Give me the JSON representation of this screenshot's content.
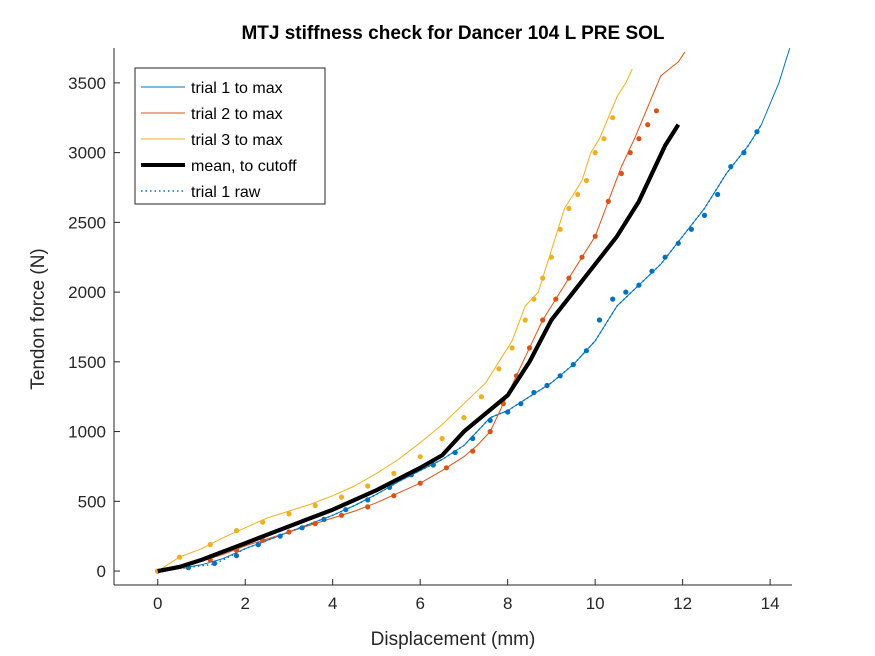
{
  "chart_data": {
    "type": "line",
    "title": "MTJ stiffness check for Dancer 104 L PRE SOL",
    "xlabel": "Displacement (mm)",
    "ylabel": "Tendon force (N)",
    "xlim": [
      -1,
      14.5
    ],
    "ylim": [
      -100,
      3750
    ],
    "xticks": [
      0,
      2,
      4,
      6,
      8,
      10,
      12,
      14
    ],
    "yticks": [
      0,
      500,
      1000,
      1500,
      2000,
      2500,
      3000,
      3500
    ],
    "xtick_labels": [
      "0",
      "2",
      "4",
      "6",
      "8",
      "10",
      "12",
      "14"
    ],
    "ytick_labels": [
      "0",
      "500",
      "1000",
      "1500",
      "2000",
      "2500",
      "3000",
      "3500"
    ],
    "grid": false,
    "legend_position": "top-left",
    "series": [
      {
        "name": "trial 1 to max",
        "color": "#0072BD",
        "style": "solid",
        "width": 1,
        "x": [
          0,
          0.5,
          1.0,
          1.5,
          2.0,
          2.5,
          3.0,
          3.5,
          4.0,
          4.5,
          5.0,
          5.5,
          6.0,
          6.5,
          7.0,
          7.3,
          7.6,
          8.0,
          8.5,
          9.0,
          9.5,
          10.0,
          10.5,
          11.0,
          11.5,
          12.0,
          12.5,
          13.0,
          13.5,
          13.8,
          14.0,
          14.2,
          14.3,
          14.35,
          14.4,
          14.45
        ],
        "y": [
          0,
          20,
          45,
          90,
          160,
          220,
          280,
          340,
          400,
          470,
          550,
          640,
          720,
          800,
          900,
          1000,
          1100,
          1150,
          1250,
          1350,
          1480,
          1650,
          1900,
          2050,
          2200,
          2400,
          2600,
          2850,
          3050,
          3200,
          3350,
          3500,
          3600,
          3650,
          3700,
          3750
        ]
      },
      {
        "name": "trial 2 to max",
        "color": "#D95319",
        "style": "solid",
        "width": 1,
        "x": [
          0,
          0.5,
          1.0,
          1.5,
          2.0,
          2.5,
          3.0,
          3.5,
          4.0,
          4.5,
          5.0,
          5.5,
          6.0,
          6.5,
          7.0,
          7.3,
          7.6,
          7.9,
          8.2,
          8.5,
          8.8,
          9.1,
          9.4,
          9.7,
          10.0,
          10.3,
          10.6,
          10.9,
          11.1,
          11.3,
          11.5,
          11.7,
          11.9,
          12.05
        ],
        "y": [
          0,
          30,
          70,
          120,
          180,
          230,
          280,
          330,
          380,
          430,
          490,
          560,
          630,
          720,
          820,
          900,
          1000,
          1200,
          1400,
          1600,
          1800,
          1950,
          2100,
          2250,
          2400,
          2650,
          2900,
          3100,
          3250,
          3400,
          3550,
          3600,
          3650,
          3720
        ]
      },
      {
        "name": "trial 3 to max",
        "color": "#EDB120",
        "style": "solid",
        "width": 1,
        "x": [
          0,
          0.5,
          1.0,
          1.5,
          2.0,
          2.5,
          3.0,
          3.5,
          4.0,
          4.5,
          5.0,
          5.5,
          6.0,
          6.5,
          7.0,
          7.5,
          7.8,
          8.1,
          8.4,
          8.7,
          8.9,
          9.1,
          9.3,
          9.5,
          9.7,
          9.9,
          10.1,
          10.3,
          10.5,
          10.7,
          10.85
        ],
        "y": [
          0,
          100,
          160,
          240,
          310,
          380,
          430,
          480,
          540,
          610,
          700,
          800,
          920,
          1050,
          1200,
          1350,
          1500,
          1650,
          1900,
          2000,
          2200,
          2400,
          2600,
          2700,
          2800,
          3000,
          3100,
          3250,
          3400,
          3500,
          3600
        ]
      },
      {
        "name": "mean, to cutoff",
        "color": "#000000",
        "style": "solid",
        "width": 4,
        "x": [
          0,
          0.5,
          1.0,
          1.5,
          2.0,
          2.5,
          3.0,
          3.5,
          4.0,
          4.5,
          5.0,
          5.5,
          6.0,
          6.5,
          7.0,
          7.5,
          8.0,
          8.5,
          9.0,
          9.5,
          10.0,
          10.5,
          11.0,
          11.3,
          11.6,
          11.9
        ],
        "y": [
          0,
          30,
          80,
          140,
          200,
          260,
          320,
          380,
          440,
          510,
          580,
          660,
          740,
          830,
          1000,
          1130,
          1260,
          1500,
          1800,
          2000,
          2200,
          2400,
          2650,
          2850,
          3050,
          3200
        ]
      },
      {
        "name": "trial 1 raw",
        "color": "#0072BD",
        "style": "dotted",
        "width": 1.5,
        "marker_every": 1,
        "x": [
          0,
          1.3,
          2.0,
          2.5,
          3.0,
          3.5,
          4.0,
          4.5,
          5.0,
          5.5,
          6.0,
          6.5,
          7.0,
          7.3,
          7.6,
          8.0,
          8.5,
          9.0,
          9.5,
          10.0,
          10.5,
          11.0,
          11.5,
          12.0,
          12.5,
          13.0,
          13.5,
          13.8
        ],
        "y": [
          0,
          50,
          160,
          220,
          280,
          340,
          400,
          470,
          550,
          640,
          720,
          800,
          900,
          1000,
          1100,
          1150,
          1250,
          1350,
          1480,
          1650,
          1900,
          2050,
          2200,
          2400,
          2600,
          2850,
          3050,
          3200
        ]
      }
    ],
    "markers": [
      {
        "series": "trial 1 to max",
        "color": "#0072BD",
        "x": [
          0,
          0.7,
          1.3,
          1.8,
          2.3,
          2.8,
          3.3,
          3.8,
          4.3,
          4.8,
          5.3,
          5.8,
          6.3,
          6.8,
          7.2,
          7.6,
          8.0,
          8.3,
          8.6,
          8.9,
          9.2,
          9.5,
          9.8,
          10.1,
          10.4,
          10.7,
          11.0,
          11.3,
          11.6,
          11.9,
          12.2,
          12.5,
          12.8,
          13.1,
          13.4,
          13.7
        ],
        "y": [
          0,
          25,
          55,
          110,
          190,
          250,
          310,
          370,
          440,
          510,
          600,
          690,
          760,
          850,
          950,
          1080,
          1140,
          1200,
          1280,
          1330,
          1400,
          1480,
          1580,
          1800,
          1950,
          2000,
          2050,
          2150,
          2250,
          2350,
          2450,
          2550,
          2700,
          2900,
          3000,
          3150
        ]
      },
      {
        "series": "trial 2 to max",
        "color": "#D95319",
        "x": [
          0,
          0.6,
          1.2,
          1.8,
          2.4,
          3.0,
          3.6,
          4.2,
          4.8,
          5.4,
          6.0,
          6.6,
          7.2,
          7.6,
          7.9,
          8.2,
          8.5,
          8.8,
          9.1,
          9.4,
          9.7,
          10.0,
          10.3,
          10.6,
          10.8,
          11.0,
          11.2,
          11.4
        ],
        "y": [
          0,
          35,
          80,
          150,
          220,
          280,
          340,
          400,
          460,
          540,
          630,
          740,
          860,
          1000,
          1200,
          1400,
          1600,
          1800,
          1950,
          2100,
          2250,
          2400,
          2650,
          2850,
          3000,
          3100,
          3200,
          3300
        ]
      },
      {
        "series": "trial 3 to max",
        "color": "#EDB120",
        "x": [
          0,
          0.5,
          1.2,
          1.8,
          2.4,
          3.0,
          3.6,
          4.2,
          4.8,
          5.4,
          6.0,
          6.5,
          7.0,
          7.4,
          7.8,
          8.1,
          8.4,
          8.6,
          8.8,
          9.0,
          9.2,
          9.4,
          9.6,
          9.8,
          10.0,
          10.2,
          10.4
        ],
        "y": [
          0,
          100,
          190,
          290,
          350,
          410,
          470,
          530,
          610,
          700,
          820,
          950,
          1100,
          1250,
          1450,
          1600,
          1800,
          1950,
          2100,
          2250,
          2450,
          2600,
          2700,
          2800,
          3000,
          3100,
          3250
        ]
      }
    ]
  }
}
